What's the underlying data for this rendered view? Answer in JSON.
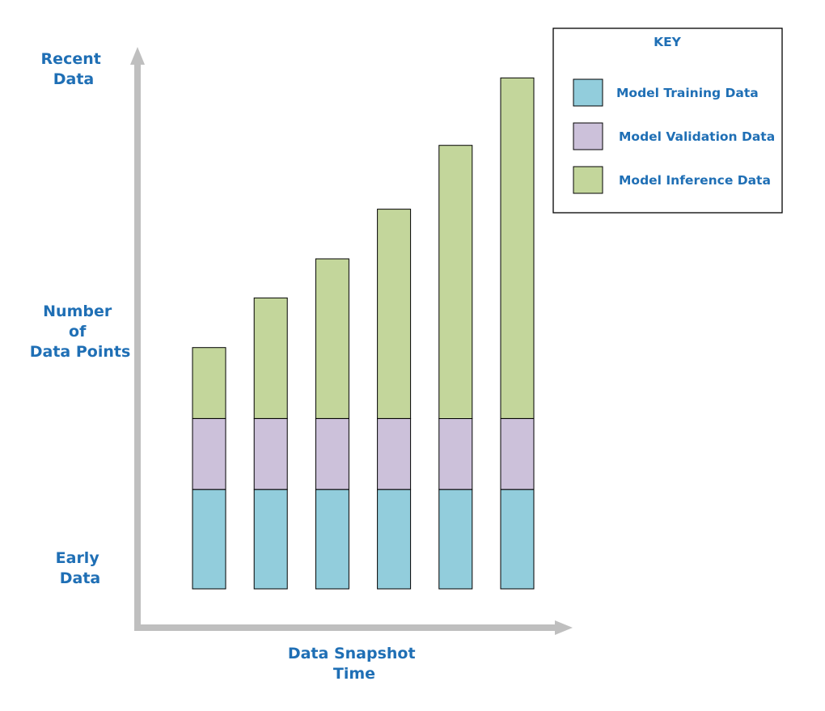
{
  "chart_data": {
    "type": "bar",
    "stacked": true,
    "xlabel": [
      "Data Snapshot",
      "Time"
    ],
    "ylabel": [
      "Number",
      "of",
      "Data Points"
    ],
    "y_top_label": [
      "Recent",
      "Data"
    ],
    "y_bottom_label": [
      "Early",
      "Data"
    ],
    "key_title": "KEY",
    "series": [
      {
        "name": "Model Training Data",
        "color": "#92cddc",
        "values": [
          2.8,
          2.8,
          2.8,
          2.8,
          2.8,
          2.8
        ]
      },
      {
        "name": "Model Validation Data",
        "color": "#ccc1da",
        "values": [
          2.0,
          2.0,
          2.0,
          2.0,
          2.0,
          2.0
        ]
      },
      {
        "name": "Model Inference Data",
        "color": "#c3d69b",
        "values": [
          2.0,
          3.4,
          4.5,
          5.9,
          7.7,
          9.6
        ]
      }
    ],
    "categories_count": 6,
    "ylim": [
      0,
      15
    ]
  }
}
